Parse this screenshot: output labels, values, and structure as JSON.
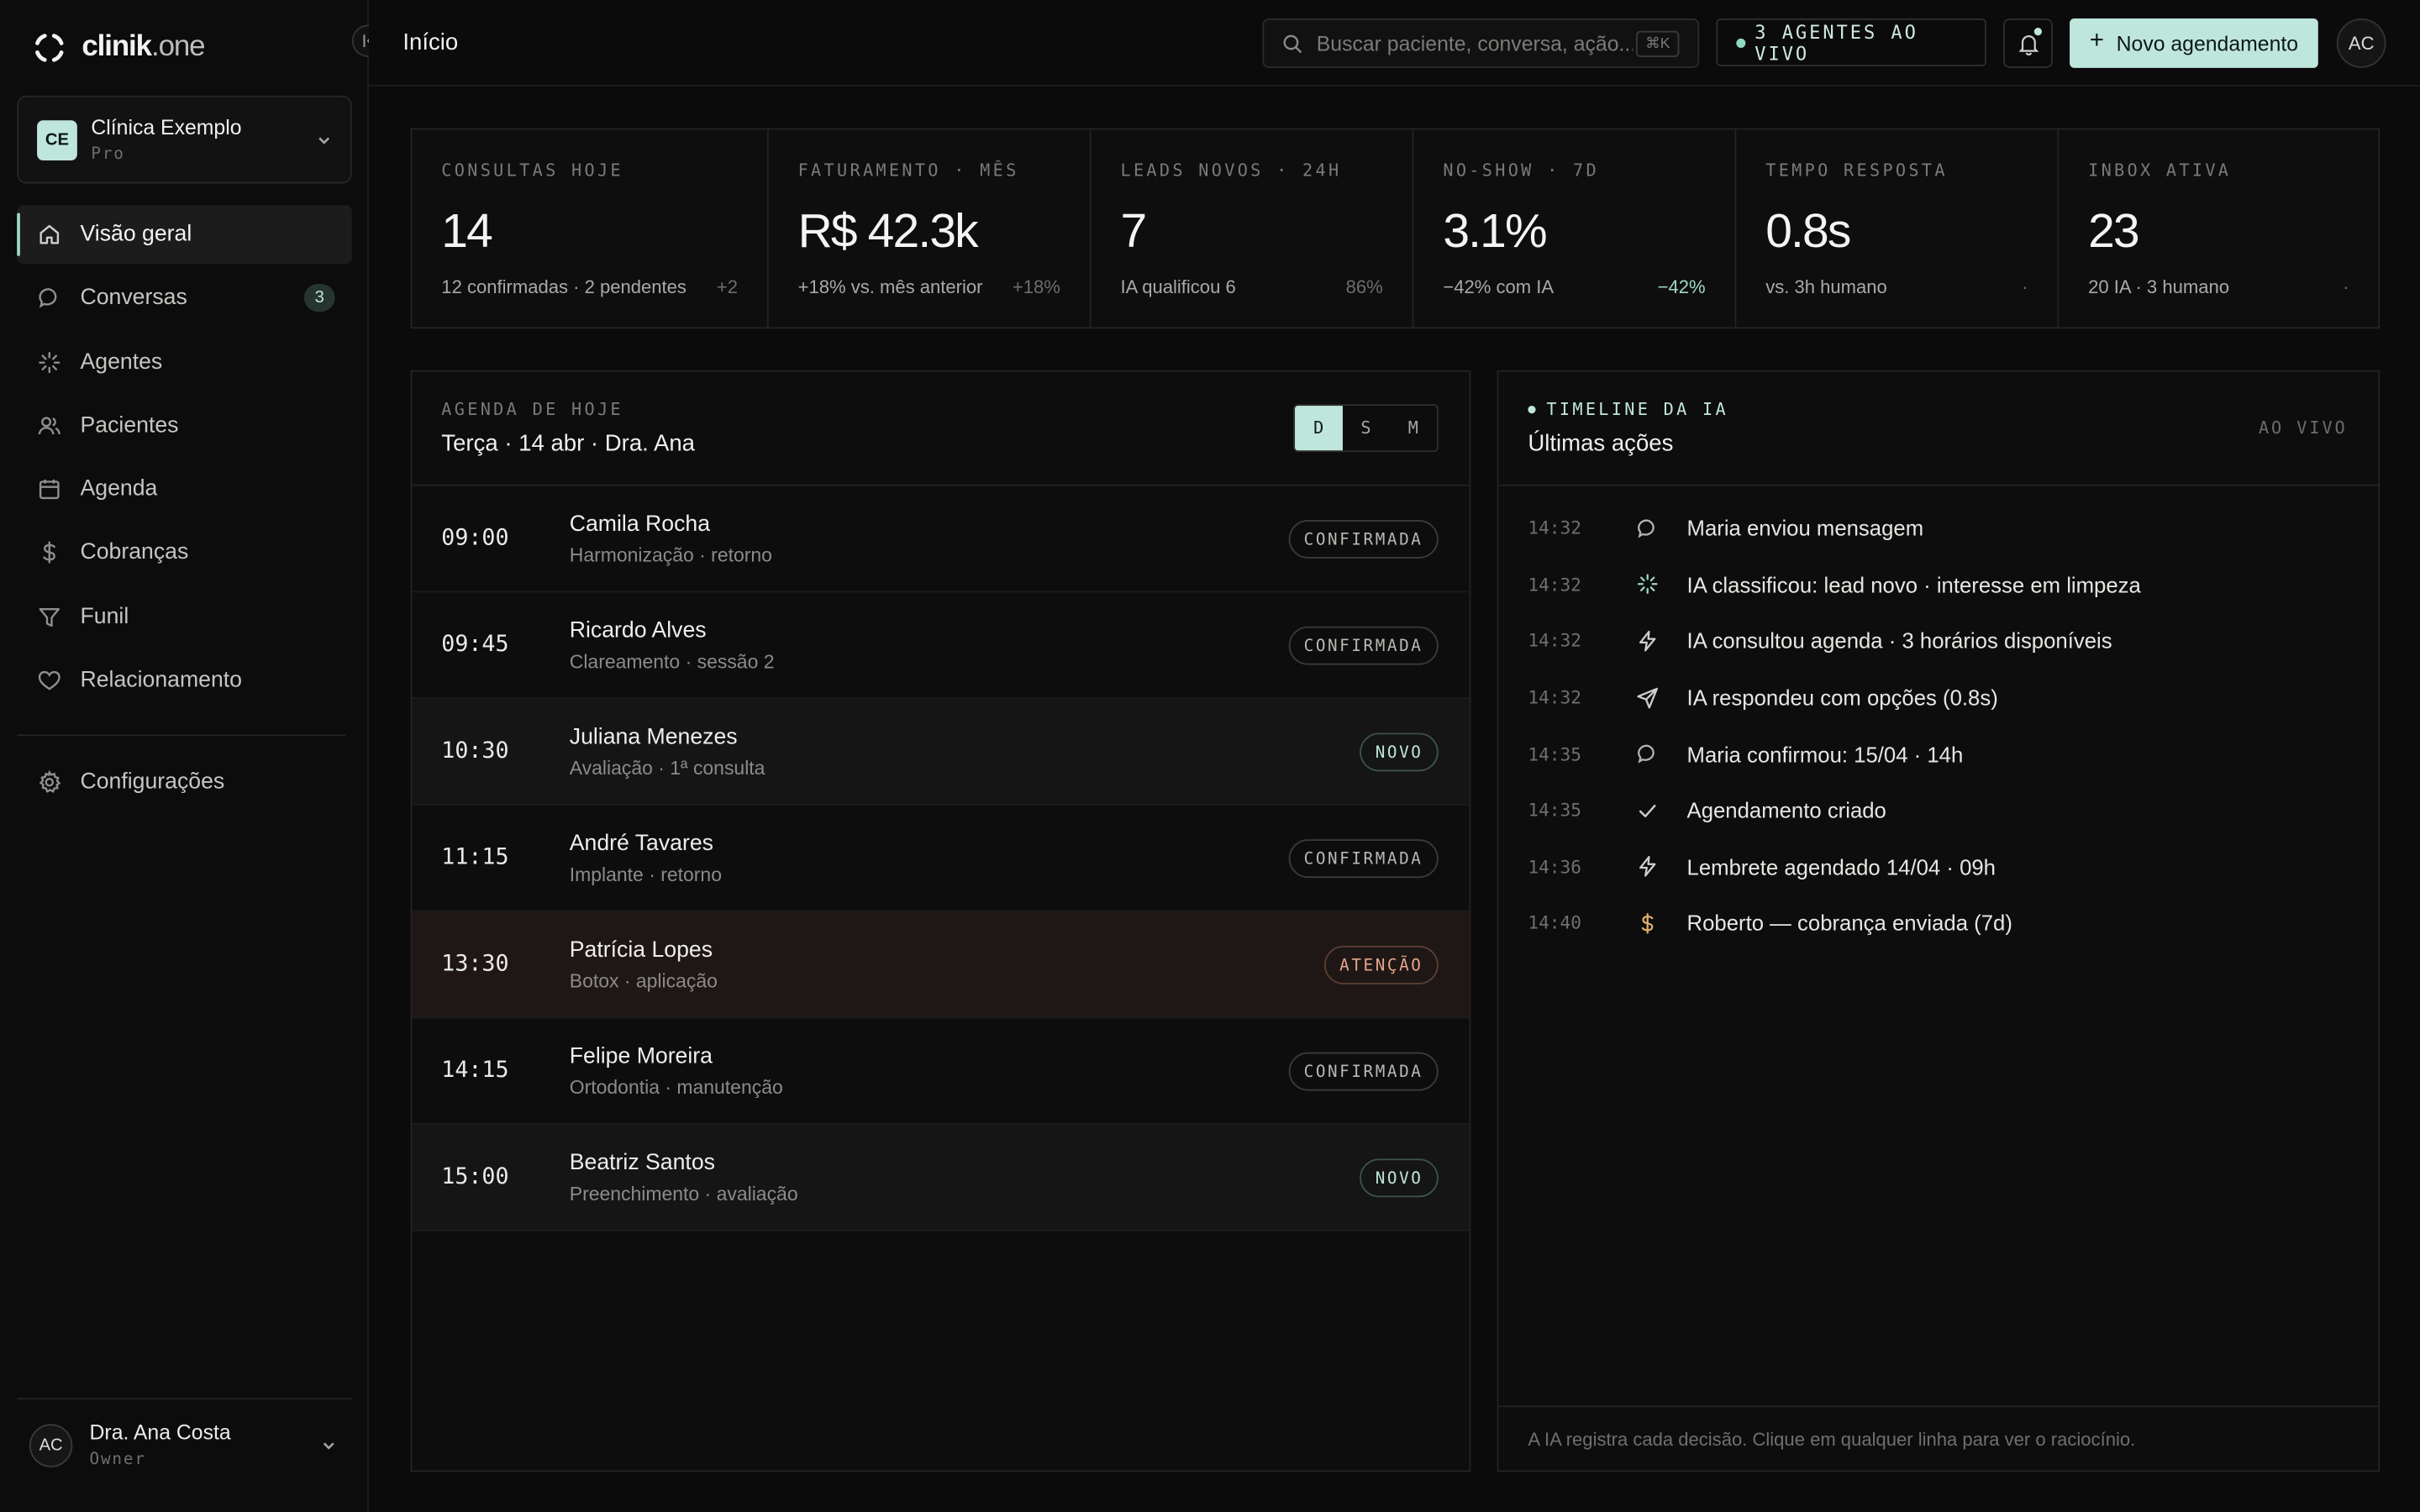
{
  "brand": {
    "name": "clinik",
    "suffix": ".one"
  },
  "clinic": {
    "initials": "CE",
    "name": "Clínica Exemplo",
    "plan": "Pro"
  },
  "nav": [
    {
      "label": "Visão geral",
      "icon": "home-icon",
      "active": true
    },
    {
      "label": "Conversas",
      "icon": "chat-icon",
      "badge": "3"
    },
    {
      "label": "Agentes",
      "icon": "sparkle-icon"
    },
    {
      "label": "Pacientes",
      "icon": "users-icon"
    },
    {
      "label": "Agenda",
      "icon": "calendar-icon"
    },
    {
      "label": "Cobranças",
      "icon": "dollar-icon"
    },
    {
      "label": "Funil",
      "icon": "filter-icon"
    },
    {
      "label": "Relacionamento",
      "icon": "heart-icon"
    }
  ],
  "settings": {
    "label": "Configurações",
    "icon": "gear-icon"
  },
  "user": {
    "initials": "AC",
    "name": "Dra. Ana Costa",
    "role": "Owner"
  },
  "topbar": {
    "title": "Início",
    "search_placeholder": "Buscar paciente, conversa, ação...",
    "search_shortcut": "⌘K",
    "live_label": "3 AGENTES AO VIVO",
    "new_button": "Novo agendamento",
    "avatar": "AC"
  },
  "stats": [
    {
      "label": "CONSULTAS HOJE",
      "value": "14",
      "sub": "12 confirmadas · 2 pendentes",
      "delta": "+2",
      "positive": false
    },
    {
      "label": "FATURAMENTO · MÊS",
      "value": "R$ 42.3k",
      "sub": "+18% vs. mês anterior",
      "delta": "+18%",
      "positive": false
    },
    {
      "label": "LEADS NOVOS · 24H",
      "value": "7",
      "sub": "IA qualificou 6",
      "delta": "86%",
      "positive": false
    },
    {
      "label": "NO-SHOW · 7D",
      "value": "3.1%",
      "sub": "−42% com IA",
      "delta": "−42%",
      "positive": true
    },
    {
      "label": "TEMPO RESPOSTA",
      "value": "0.8s",
      "sub": "vs. 3h humano",
      "delta": "·",
      "positive": false
    },
    {
      "label": "INBOX ATIVA",
      "value": "23",
      "sub": "20 IA · 3 humano",
      "delta": "·",
      "positive": false
    }
  ],
  "agenda": {
    "kicker": "AGENDA DE HOJE",
    "title": "Terça · 14 abr · Dra. Ana",
    "views": [
      "D",
      "S",
      "M"
    ],
    "active_view": "D",
    "items": [
      {
        "time": "09:00",
        "name": "Camila Rocha",
        "detail": "Harmonização · retorno",
        "status": "CONFIRMADA",
        "kind": "confirmada"
      },
      {
        "time": "09:45",
        "name": "Ricardo Alves",
        "detail": "Clareamento · sessão 2",
        "status": "CONFIRMADA",
        "kind": "confirmada"
      },
      {
        "time": "10:30",
        "name": "Juliana Menezes",
        "detail": "Avaliação · 1ª consulta",
        "status": "NOVO",
        "kind": "novo"
      },
      {
        "time": "11:15",
        "name": "André Tavares",
        "detail": "Implante · retorno",
        "status": "CONFIRMADA",
        "kind": "confirmada"
      },
      {
        "time": "13:30",
        "name": "Patrícia Lopes",
        "detail": "Botox · aplicação",
        "status": "ATENÇÃO",
        "kind": "atencao"
      },
      {
        "time": "14:15",
        "name": "Felipe Moreira",
        "detail": "Ortodontia · manutenção",
        "status": "CONFIRMADA",
        "kind": "confirmada"
      },
      {
        "time": "15:00",
        "name": "Beatriz Santos",
        "detail": "Preenchimento · avaliação",
        "status": "NOVO",
        "kind": "novo"
      }
    ]
  },
  "timeline": {
    "kicker": "TIMELINE DA IA",
    "title": "Últimas ações",
    "live": "AO VIVO",
    "footer": "A IA registra cada decisão. Clique em qualquer linha para ver o raciocínio.",
    "events": [
      {
        "time": "14:32",
        "icon": "chat-icon",
        "text": "Maria enviou mensagem"
      },
      {
        "time": "14:32",
        "icon": "sparkle-icon",
        "text": "IA classificou: lead novo · interesse em limpeza"
      },
      {
        "time": "14:32",
        "icon": "bolt-icon",
        "text": "IA consultou agenda · 3 horários disponíveis"
      },
      {
        "time": "14:32",
        "icon": "send-icon",
        "text": "IA respondeu com opções (0.8s)"
      },
      {
        "time": "14:35",
        "icon": "chat-icon",
        "text": "Maria confirmou: 15/04 · 14h"
      },
      {
        "time": "14:35",
        "icon": "check-icon",
        "text": "Agendamento criado"
      },
      {
        "time": "14:36",
        "icon": "bolt-icon",
        "text": "Lembrete agendado 14/04 · 09h"
      },
      {
        "time": "14:40",
        "icon": "dollar-icon",
        "text": "Roberto — cobrança enviada (7d)"
      }
    ]
  },
  "colors": {
    "accent": "#bfe6dc",
    "warning": "#e7a68e",
    "money": "#e0b06a"
  }
}
